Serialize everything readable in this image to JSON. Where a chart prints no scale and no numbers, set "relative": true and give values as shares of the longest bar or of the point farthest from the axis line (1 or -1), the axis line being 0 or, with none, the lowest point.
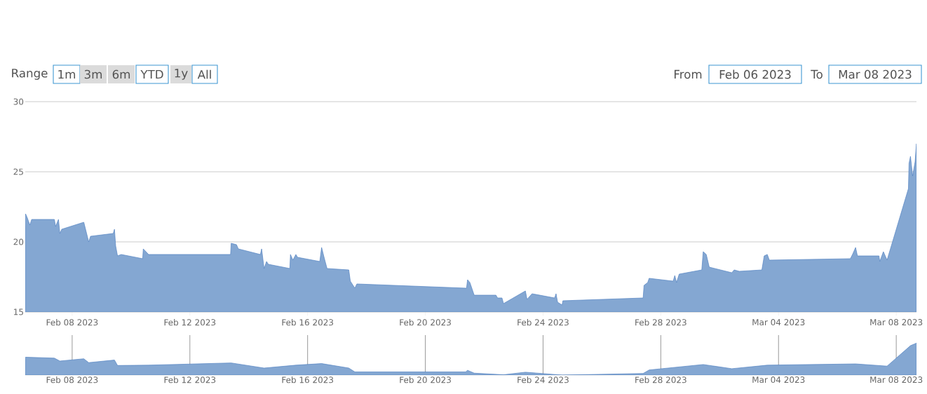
{
  "chart_data": [
    {
      "type": "area",
      "grid": "y",
      "ylim": [
        15,
        30
      ],
      "yticks": [
        15,
        20,
        25,
        30
      ],
      "xlim": [
        "2023-02-06T09:45",
        "2023-03-08T16:30"
      ],
      "xticks": [
        {
          "value": "2023-02-08",
          "label": "Feb 08 2023"
        },
        {
          "value": "2023-02-12",
          "label": "Feb 12 2023"
        },
        {
          "value": "2023-02-16",
          "label": "Feb 16 2023"
        },
        {
          "value": "2023-02-20",
          "label": "Feb 20 2023"
        },
        {
          "value": "2023-02-24",
          "label": "Feb 24 2023"
        },
        {
          "value": "2023-02-28",
          "label": "Feb 28 2023"
        },
        {
          "value": "2023-03-04",
          "label": "Mar 04 2023"
        },
        {
          "value": "2023-03-08",
          "label": "Mar 08 2023"
        }
      ],
      "annotations": [
        "Range",
        "1m",
        "3m",
        "6m",
        "YTD",
        "1y",
        "All",
        "From",
        "Feb 06 2023",
        "To",
        "Mar 08 2023"
      ],
      "series": [
        {
          "color": "#84a7d2",
          "x": [
            "2023-02-06T09:45",
            "2023-02-06T10:00",
            "2023-02-06T11:30",
            "2023-02-06T13:30",
            "2023-02-06T15:00",
            "2023-02-07T09:30",
            "2023-02-07T10:30",
            "2023-02-07T12:50",
            "2023-02-07T14:00",
            "2023-02-07T15:30",
            "2023-02-08T09:30",
            "2023-02-08T11:30",
            "2023-02-08T13:30",
            "2023-02-08T15:00",
            "2023-02-09T09:30",
            "2023-02-09T10:30",
            "2023-02-09T11:30",
            "2023-02-09T13:00",
            "2023-02-09T16:00",
            "2023-02-10T09:30",
            "2023-02-10T10:00",
            "2023-02-10T14:20",
            "2023-02-13T09:10",
            "2023-02-13T09:40",
            "2023-02-13T14:00",
            "2023-02-13T15:30",
            "2023-02-14T09:30",
            "2023-02-14T10:30",
            "2023-02-14T12:30",
            "2023-02-14T14:30",
            "2023-02-14T16:00",
            "2023-02-15T09:30",
            "2023-02-15T10:00",
            "2023-02-15T12:00",
            "2023-02-15T14:25",
            "2023-02-15T15:50",
            "2023-02-16T09:55",
            "2023-02-16T11:25",
            "2023-02-16T13:25",
            "2023-02-16T15:50",
            "2023-02-17T09:35",
            "2023-02-17T10:50",
            "2023-02-17T14:30",
            "2023-02-17T16:10",
            "2023-02-21T08:55",
            "2023-02-21T09:35",
            "2023-02-21T10:25",
            "2023-02-21T12:20",
            "2023-02-21T15:50",
            "2023-02-22T09:35",
            "2023-02-22T10:55",
            "2023-02-22T14:30",
            "2023-02-22T15:45",
            "2023-02-23T09:35",
            "2023-02-23T10:55",
            "2023-02-23T15:00",
            "2023-02-24T09:25",
            "2023-02-24T10:35",
            "2023-02-24T11:50",
            "2023-02-24T15:30",
            "2023-02-24T16:10",
            "2023-02-27T09:35",
            "2023-02-27T10:20",
            "2023-02-27T13:20",
            "2023-02-27T14:30",
            "2023-02-28T10:05",
            "2023-02-28T11:25",
            "2023-02-28T12:50",
            "2023-02-28T15:00",
            "2023-03-01T09:25",
            "2023-03-01T10:35",
            "2023-03-01T13:05",
            "2023-03-01T15:30",
            "2023-03-02T09:55",
            "2023-03-02T11:50",
            "2023-03-02T16:00",
            "2023-03-03T10:25",
            "2023-03-03T12:20",
            "2023-03-03T14:50",
            "2023-03-03T16:30",
            "2023-03-06T10:35",
            "2023-03-06T12:20",
            "2023-03-06T14:50",
            "2023-03-06T16:20",
            "2023-03-07T09:55",
            "2023-03-07T10:35",
            "2023-03-07T13:30",
            "2023-03-07T16:30",
            "2023-03-08T09:55",
            "2023-03-08T10:25",
            "2023-03-08T11:35",
            "2023-03-08T13:20",
            "2023-03-08T15:20",
            "2023-03-08T16:30"
          ],
          "values": [
            20.9,
            22.0,
            21.7,
            21.2,
            21.6,
            21.6,
            21.1,
            21.6,
            20.6,
            20.9,
            21.4,
            20.7,
            20.0,
            20.4,
            20.6,
            20.9,
            19.7,
            19.0,
            19.1,
            18.8,
            19.5,
            19.1,
            19.1,
            19.9,
            19.8,
            19.5,
            19.1,
            19.5,
            18.1,
            18.6,
            18.4,
            18.1,
            19.1,
            18.7,
            19.1,
            18.9,
            18.6,
            19.6,
            18.9,
            18.1,
            18.0,
            17.2,
            16.7,
            17.0,
            16.7,
            16.7,
            17.3,
            17.1,
            16.2,
            16.2,
            16.0,
            16.0,
            15.6,
            16.5,
            15.9,
            16.3,
            16.0,
            16.3,
            15.7,
            15.5,
            15.8,
            16.0,
            16.9,
            17.1,
            17.4,
            17.2,
            17.6,
            17.1,
            17.7,
            18.0,
            19.3,
            19.1,
            18.2,
            17.8,
            18.0,
            17.9,
            18.0,
            19.0,
            19.1,
            18.7,
            18.8,
            19.1,
            19.6,
            19.0,
            19.0,
            18.6,
            19.3,
            18.7,
            23.8,
            25.6,
            26.1,
            24.7,
            25.7,
            27.0
          ]
        }
      ]
    },
    {
      "type": "area",
      "relative": true,
      "grid": "x",
      "tick_labels": "x",
      "xlim": [
        "2023-02-06T09:45",
        "2023-03-08T16:30"
      ],
      "xticks": [
        {
          "value": "2023-02-08",
          "label": "Feb 08 2023"
        },
        {
          "value": "2023-02-12",
          "label": "Feb 12 2023"
        },
        {
          "value": "2023-02-16",
          "label": "Feb 16 2023"
        },
        {
          "value": "2023-02-20",
          "label": "Feb 20 2023"
        },
        {
          "value": "2023-02-24",
          "label": "Feb 24 2023"
        },
        {
          "value": "2023-02-28",
          "label": "Feb 28 2023"
        },
        {
          "value": "2023-03-04",
          "label": "Mar 04 2023"
        },
        {
          "value": "2023-03-08",
          "label": "Mar 08 2023"
        }
      ],
      "series": [
        {
          "color": "#84a7d2",
          "x": [
            "2023-02-06T09:45",
            "2023-02-06T10:00",
            "2023-02-07T09:30",
            "2023-02-07T14:00",
            "2023-02-08T09:30",
            "2023-02-08T13:30",
            "2023-02-09T10:30",
            "2023-02-09T13:00",
            "2023-02-10T14:20",
            "2023-02-13T09:40",
            "2023-02-14T12:30",
            "2023-02-15T14:25",
            "2023-02-16T11:25",
            "2023-02-17T09:35",
            "2023-02-17T14:30",
            "2023-02-21T08:55",
            "2023-02-21T10:25",
            "2023-02-21T15:50",
            "2023-02-22T15:45",
            "2023-02-23T09:35",
            "2023-02-24T15:30",
            "2023-02-27T09:35",
            "2023-02-27T14:30",
            "2023-03-01T10:35",
            "2023-03-02T09:55",
            "2023-03-03T14:50",
            "2023-03-06T14:50",
            "2023-03-07T16:30",
            "2023-03-08T11:35",
            "2023-03-08T16:30"
          ],
          "values": [
            0.47,
            0.56,
            0.53,
            0.44,
            0.51,
            0.39,
            0.47,
            0.3,
            0.31,
            0.38,
            0.22,
            0.31,
            0.36,
            0.22,
            0.1,
            0.1,
            0.15,
            0.06,
            0.01,
            0.09,
            0.0,
            0.05,
            0.16,
            0.33,
            0.2,
            0.31,
            0.35,
            0.28,
            0.92,
            1.0
          ]
        }
      ]
    }
  ]
}
